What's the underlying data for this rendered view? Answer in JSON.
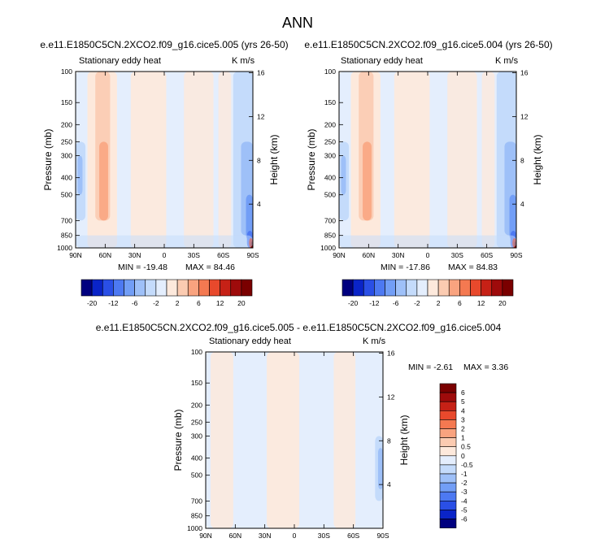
{
  "figure": {
    "title": "ANN"
  },
  "palette": [
    "#00007f",
    "#0a24c8",
    "#2a4fe6",
    "#4d79f2",
    "#729ef6",
    "#9ec0f8",
    "#c4dbfb",
    "#e4eefd",
    "#fde9dc",
    "#fbcbb1",
    "#f9a37f",
    "#f47951",
    "#e8492c",
    "#c62116",
    "#9e0b0b",
    "#7a0000"
  ],
  "panels": [
    {
      "id": "case1",
      "case_title": "e.e11.E1850C5CN.2XCO2.f09_g16.cice5.005 (yrs 26-50)",
      "left_label": "Stationary eddy heat",
      "right_label": "K m/s",
      "min_label": "MIN = -19.48",
      "max_label": "MAX = 84.46",
      "min_max_text": "MIN = -19.48   MAX = 84.46"
    },
    {
      "id": "case2",
      "case_title": "e.e11.E1850C5CN.2XCO2.f09_g16.cice5.004 (yrs 26-50)",
      "left_label": "Stationary eddy heat",
      "right_label": "K m/s",
      "min_label": "MIN = -17.86",
      "max_label": "MAX = 84.83",
      "min_max_text": "MIN = -17.86   MAX = 84.83"
    },
    {
      "id": "diff",
      "case_title": "e.e11.E1850C5CN.2XCO2.f09_g16.cice5.005 - e.e11.E1850C5CN.2XCO2.f09_g16.cice5.004",
      "left_label": "Stationary eddy heat",
      "right_label": "K m/s",
      "min_label": "MIN =  -2.61",
      "max_label": "MAX =   3.36",
      "min_max_text": "MIN =  -2.61   MAX =   3.36"
    }
  ],
  "chart_data": [
    {
      "type": "heatmap",
      "title": "e.e11.E1850C5CN.2XCO2.f09_g16.cice5.005 (yrs 26-50)",
      "variable": "Stationary eddy heat",
      "units": "K m/s",
      "xlabel": "",
      "ylabel": "Pressure (mb)",
      "ylabel_right": "Height (km)",
      "x_ticks": [
        "90N",
        "60N",
        "30N",
        "0",
        "30S",
        "60S",
        "90S"
      ],
      "x_tick_values": [
        90,
        60,
        30,
        0,
        -30,
        -60,
        -90
      ],
      "xlim": [
        90,
        -90
      ],
      "y_ticks": [
        "100",
        "150",
        "200",
        "250",
        "300",
        "400",
        "500",
        "700",
        "850",
        "1000"
      ],
      "y_tick_values": [
        100,
        150,
        200,
        250,
        300,
        400,
        500,
        700,
        850,
        1000
      ],
      "ylim": [
        1000,
        100
      ],
      "y_scale": "log",
      "right_ticks": [
        "4",
        "8",
        "12",
        "16"
      ],
      "right_tick_values": [
        4,
        8,
        12,
        16
      ],
      "colorbar_levels": [
        -20,
        -16,
        -12,
        -8,
        -6,
        -4,
        -2,
        -1,
        1,
        2,
        4,
        6,
        8,
        12,
        16,
        20
      ],
      "colorbar_labels": [
        "-20",
        "-12",
        "-6",
        "-2",
        "2",
        "6",
        "12",
        "20"
      ],
      "min": -19.48,
      "max": 84.46
    },
    {
      "type": "heatmap",
      "title": "e.e11.E1850C5CN.2XCO2.f09_g16.cice5.004 (yrs 26-50)",
      "variable": "Stationary eddy heat",
      "units": "K m/s",
      "xlabel": "",
      "ylabel": "Pressure (mb)",
      "ylabel_right": "Height (km)",
      "x_ticks": [
        "90N",
        "60N",
        "30N",
        "0",
        "30S",
        "60S",
        "90S"
      ],
      "x_tick_values": [
        90,
        60,
        30,
        0,
        -30,
        -60,
        -90
      ],
      "xlim": [
        90,
        -90
      ],
      "y_ticks": [
        "100",
        "150",
        "200",
        "250",
        "300",
        "400",
        "500",
        "700",
        "850",
        "1000"
      ],
      "y_tick_values": [
        100,
        150,
        200,
        250,
        300,
        400,
        500,
        700,
        850,
        1000
      ],
      "ylim": [
        1000,
        100
      ],
      "y_scale": "log",
      "right_ticks": [
        "4",
        "8",
        "12",
        "16"
      ],
      "right_tick_values": [
        4,
        8,
        12,
        16
      ],
      "colorbar_levels": [
        -20,
        -16,
        -12,
        -8,
        -6,
        -4,
        -2,
        -1,
        1,
        2,
        4,
        6,
        8,
        12,
        16,
        20
      ],
      "colorbar_labels": [
        "-20",
        "-12",
        "-6",
        "-2",
        "2",
        "6",
        "12",
        "20"
      ],
      "min": -17.86,
      "max": 84.83
    },
    {
      "type": "heatmap",
      "title": "e.e11.E1850C5CN.2XCO2.f09_g16.cice5.005 - e.e11.E1850C5CN.2XCO2.f09_g16.cice5.004",
      "variable": "Stationary eddy heat",
      "units": "K m/s",
      "xlabel": "",
      "ylabel": "Pressure (mb)",
      "ylabel_right": "Height (km)",
      "x_ticks": [
        "90N",
        "60N",
        "30N",
        "0",
        "30S",
        "60S",
        "90S"
      ],
      "x_tick_values": [
        90,
        60,
        30,
        0,
        -30,
        -60,
        -90
      ],
      "xlim": [
        90,
        -90
      ],
      "y_ticks": [
        "100",
        "150",
        "200",
        "250",
        "300",
        "400",
        "500",
        "700",
        "850",
        "1000"
      ],
      "y_tick_values": [
        100,
        150,
        200,
        250,
        300,
        400,
        500,
        700,
        850,
        1000
      ],
      "ylim": [
        1000,
        100
      ],
      "y_scale": "log",
      "right_ticks": [
        "4",
        "8",
        "12",
        "16"
      ],
      "right_tick_values": [
        4,
        8,
        12,
        16
      ],
      "colorbar_levels": [
        -6,
        -5,
        -4,
        -3,
        -2,
        -1,
        -0.5,
        0,
        0.5,
        1,
        2,
        3,
        4,
        5,
        6
      ],
      "colorbar_labels": [
        "6",
        "5",
        "4",
        "3",
        "2",
        "1",
        "0.5",
        "0",
        "-0.5",
        "-1",
        "-2",
        "-3",
        "-4",
        "-5",
        "-6"
      ],
      "min": -2.61,
      "max": 3.36
    }
  ]
}
